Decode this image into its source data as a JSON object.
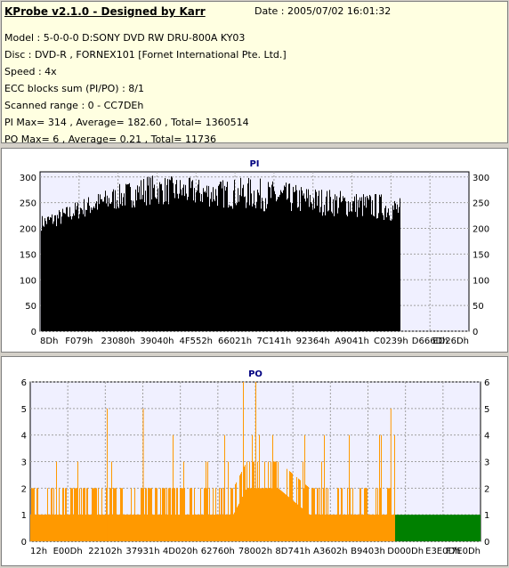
{
  "info": {
    "title": "KProbe v2.1.0 - Designed by Karr",
    "date": "Date : 2005/07/02 16:01:32",
    "lines": [
      "Model : 5-0-0-0 D:SONY    DVD RW DRU-800A  KY03",
      "Disc : DVD-R , FORNEX101 [Fornet International Pte. Ltd.]",
      "Speed : 4x",
      "ECC blocks sum (PI/PO) : 8/1",
      "Scanned range : 0 - CC7DEh",
      "PI Max= 314 , Average= 182.60 , Total= 1360514",
      "PO Max= 6 , Average= 0.21 , Total= 11736"
    ]
  },
  "colors": {
    "pi_bar": "#000000",
    "po_bar": "#ff9900",
    "po_unscanned": "#008000",
    "plot_bg": "#f0f0ff",
    "title": "#000080"
  },
  "chart_data": [
    {
      "type": "bar",
      "title": "PI",
      "ylim": [
        0,
        310
      ],
      "yticks": [
        0,
        50,
        100,
        150,
        200,
        250,
        300
      ],
      "xticks": [
        "8Dh",
        "F079h",
        "23080h",
        "39040h",
        "4F552h",
        "66021h",
        "7C141h",
        "92364h",
        "A9041h",
        "C0239h",
        "D666Dh",
        "ED26Dh"
      ],
      "scanned_fraction": 0.84,
      "grid": true,
      "envelope": [
        {
          "position": 0.0,
          "min": 195,
          "max": 225
        },
        {
          "position": 0.05,
          "min": 205,
          "max": 240
        },
        {
          "position": 0.1,
          "min": 220,
          "max": 260
        },
        {
          "position": 0.18,
          "min": 235,
          "max": 285
        },
        {
          "position": 0.25,
          "min": 245,
          "max": 305
        },
        {
          "position": 0.33,
          "min": 245,
          "max": 300
        },
        {
          "position": 0.41,
          "min": 240,
          "max": 295
        },
        {
          "position": 0.49,
          "min": 235,
          "max": 300
        },
        {
          "position": 0.57,
          "min": 230,
          "max": 290
        },
        {
          "position": 0.65,
          "min": 225,
          "max": 280
        },
        {
          "position": 0.73,
          "min": 220,
          "max": 272
        },
        {
          "position": 0.8,
          "min": 215,
          "max": 268
        },
        {
          "position": 0.84,
          "min": 210,
          "max": 260
        }
      ]
    },
    {
      "type": "bar",
      "title": "PO",
      "ylim": [
        0,
        6
      ],
      "yticks": [
        0,
        1,
        2,
        3,
        4,
        5,
        6
      ],
      "xticks": [
        "12h",
        "E00Dh",
        "22102h",
        "37931h",
        "4D020h",
        "62760h",
        "78002h",
        "8D741h",
        "A3602h",
        "B9403h",
        "D000Dh",
        "E3E0Dh",
        "F7E0Dh"
      ],
      "scanned_fraction": 0.81,
      "unscanned_value": 1,
      "grid": true,
      "baseline_value": 1,
      "envelope": [
        {
          "position": 0.0,
          "min": 1,
          "max": 3
        },
        {
          "position": 0.15,
          "min": 1,
          "max": 4
        },
        {
          "position": 0.3,
          "min": 1,
          "max": 4
        },
        {
          "position": 0.45,
          "min": 1,
          "max": 5
        },
        {
          "position": 0.48,
          "min": 2,
          "max": 6
        },
        {
          "position": 0.55,
          "min": 2,
          "max": 5
        },
        {
          "position": 0.62,
          "min": 1,
          "max": 4
        },
        {
          "position": 0.7,
          "min": 1,
          "max": 4
        },
        {
          "position": 0.8,
          "min": 1,
          "max": 5
        },
        {
          "position": 0.81,
          "min": 1,
          "max": 5
        }
      ],
      "peaks": [
        {
          "position": 0.17,
          "value": 5
        },
        {
          "position": 0.25,
          "value": 5
        },
        {
          "position": 0.5,
          "value": 6
        },
        {
          "position": 0.8,
          "value": 5
        }
      ]
    }
  ]
}
